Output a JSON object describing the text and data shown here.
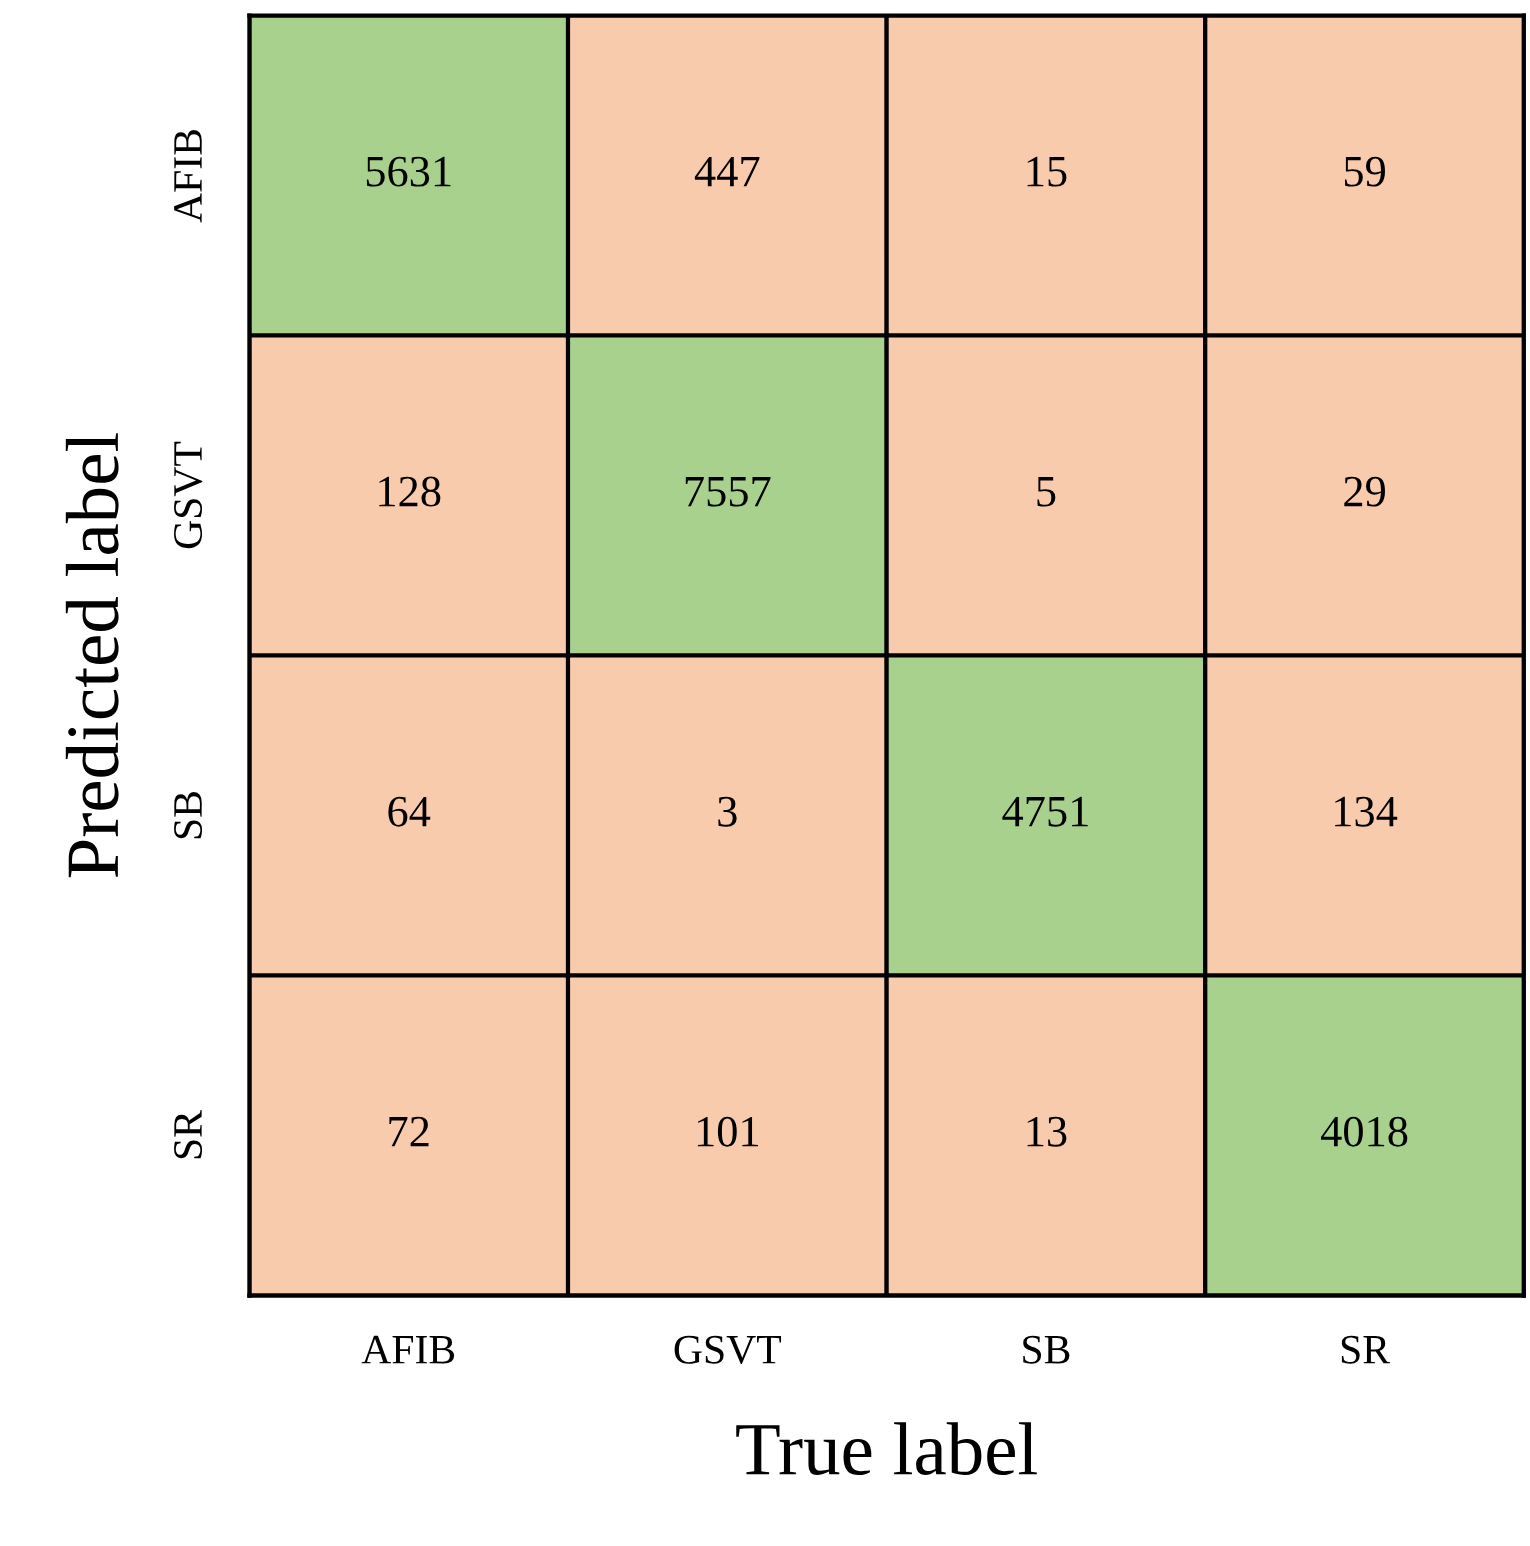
{
  "chart_data": {
    "type": "heatmap",
    "xlabel": "True label",
    "ylabel": "Predicted label",
    "categories": [
      "AFIB",
      "GSVT",
      "SB",
      "SR"
    ],
    "y_categories": [
      "AFIB",
      "GSVT",
      "SB",
      "SR"
    ],
    "cells": [
      [
        5631,
        447,
        15,
        59
      ],
      [
        128,
        7557,
        5,
        29
      ],
      [
        64,
        3,
        4751,
        134
      ],
      [
        72,
        101,
        13,
        4018
      ]
    ],
    "colors": [
      [
        "#a9d18e",
        "#f8cbad",
        "#f8cbad",
        "#f8cbad"
      ],
      [
        "#f8cbad",
        "#a9d18e",
        "#f8cbad",
        "#f8cbad"
      ],
      [
        "#f8cbad",
        "#f8cbad",
        "#a9d18e",
        "#f8cbad"
      ],
      [
        "#f8cbad",
        "#f8cbad",
        "#f8cbad",
        "#a9d18e"
      ]
    ],
    "data_labels": true
  }
}
